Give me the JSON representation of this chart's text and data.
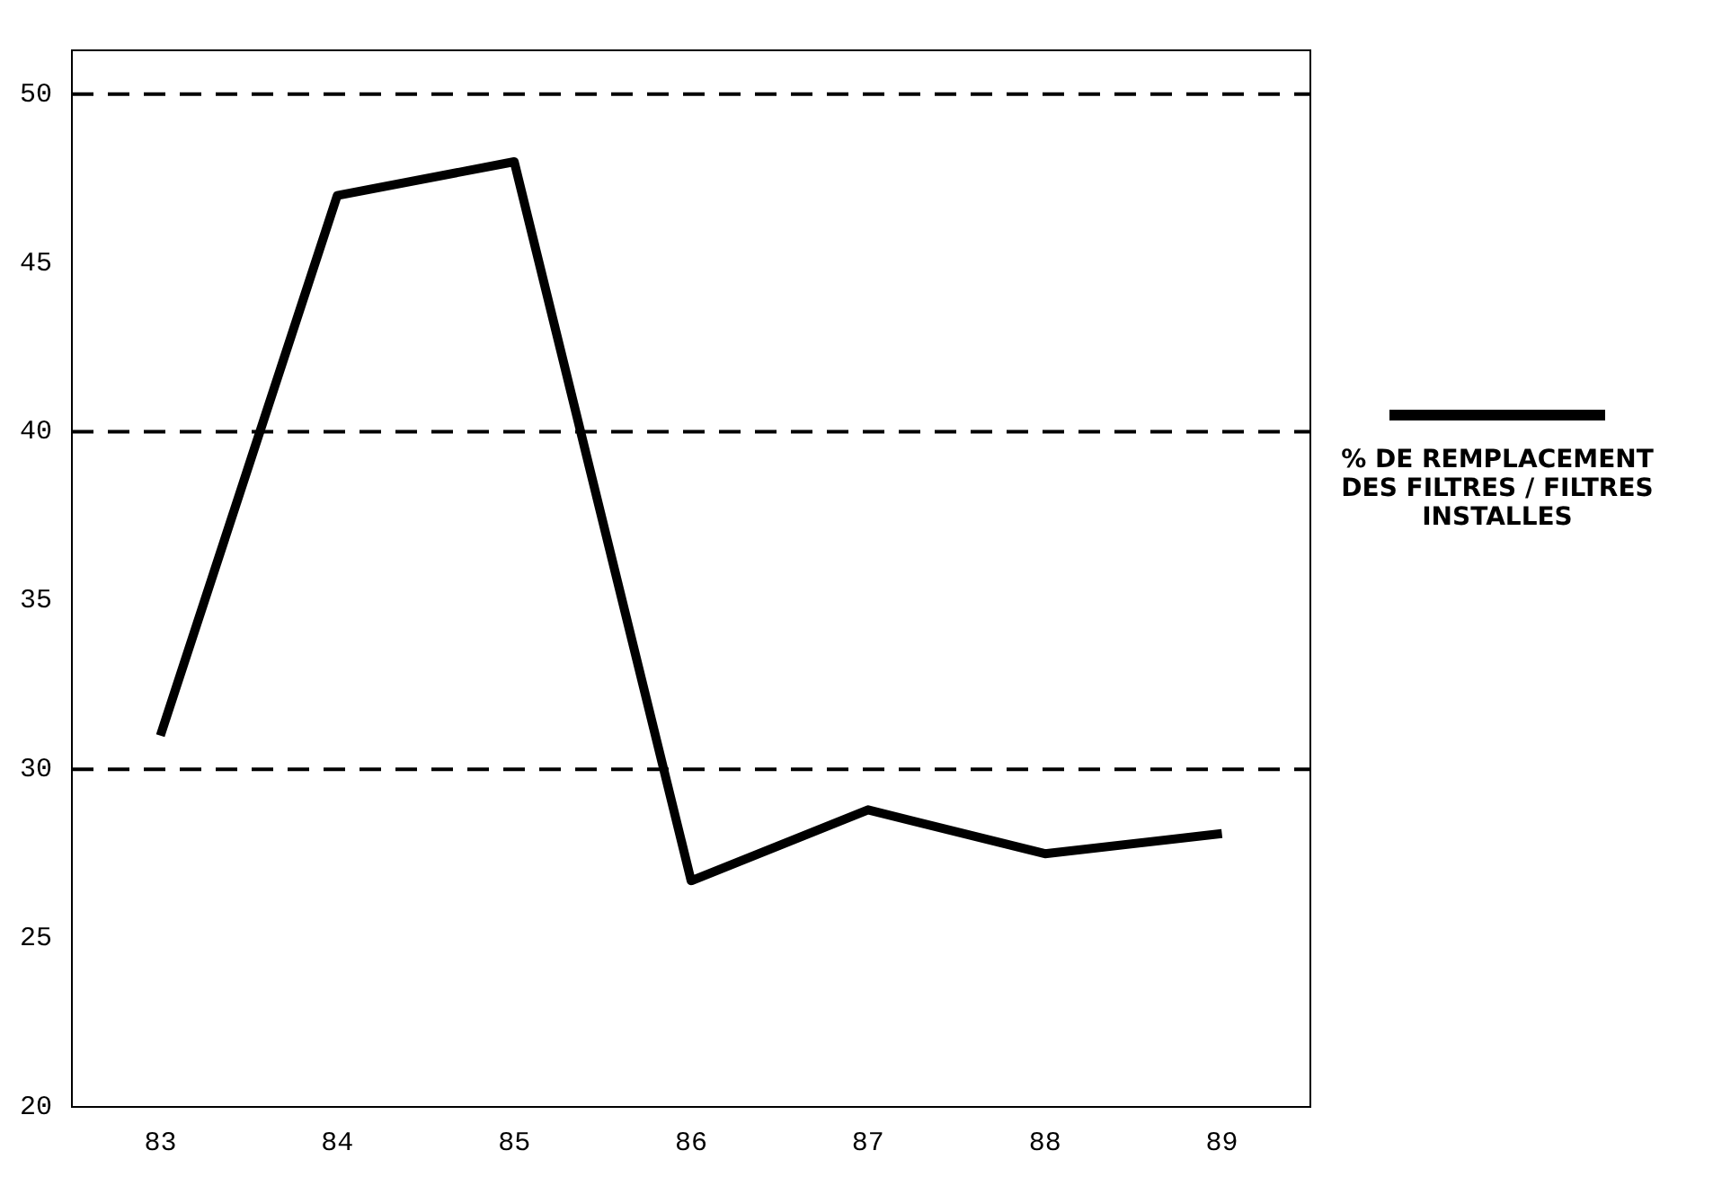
{
  "chart_data": {
    "type": "line",
    "categories": [
      "83",
      "84",
      "85",
      "86",
      "87",
      "88",
      "89"
    ],
    "series": [
      {
        "name": "% DE REMPLACEMENT DES FILTRES / FILTRES INSTALLES",
        "color": "#000000",
        "values": [
          31,
          47,
          48,
          26.7,
          28.8,
          27.5,
          28.1
        ]
      }
    ],
    "ylim": [
      20,
      51.3
    ],
    "yticks": [
      20,
      25,
      30,
      35,
      40,
      45,
      50
    ],
    "grid": false,
    "legend": "right",
    "marker": "none",
    "line_style": "solid",
    "ref_lines": [
      {
        "axis": "y",
        "value": 30,
        "line_style": "dashed"
      },
      {
        "axis": "y",
        "value": 40,
        "line_style": "dashed"
      },
      {
        "axis": "y",
        "value": 50,
        "line_style": "dashed"
      }
    ]
  }
}
